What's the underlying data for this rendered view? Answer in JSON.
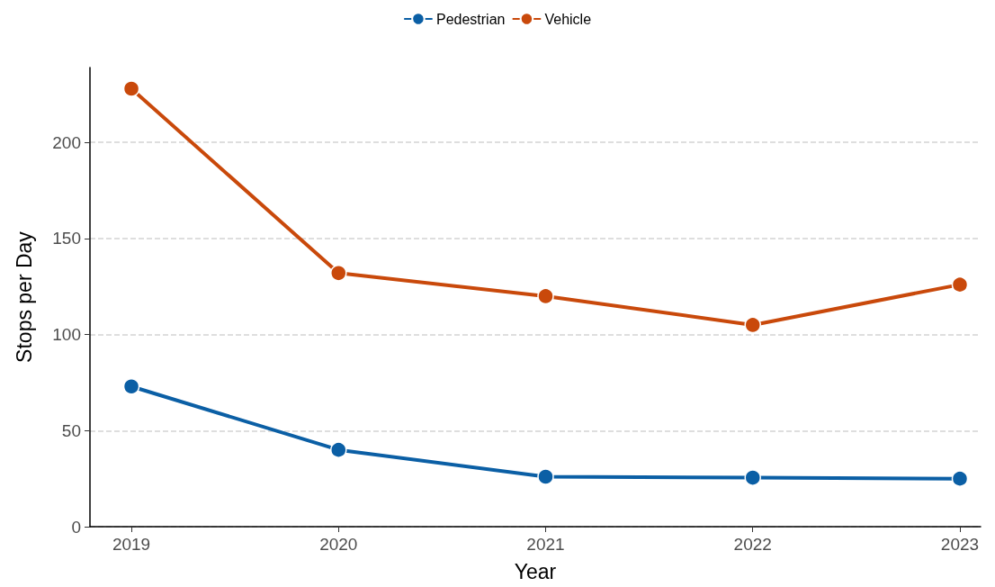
{
  "chart_data": {
    "type": "line",
    "xlabel": "Year",
    "ylabel": "Stops per Day",
    "x": [
      2019,
      2020,
      2021,
      2022,
      2023
    ],
    "series": [
      {
        "name": "Pedestrian",
        "color": "#0b5fa5",
        "values": [
          73,
          40,
          26,
          25.5,
          25
        ]
      },
      {
        "name": "Vehicle",
        "color": "#c9490b",
        "values": [
          228,
          132,
          120,
          105,
          126
        ]
      }
    ],
    "xlim": [
      2018.8,
      2023.1
    ],
    "xticks": [
      2019,
      2020,
      2021,
      2022,
      2023
    ],
    "ylim": [
      0,
      239
    ],
    "yticks": [
      0,
      50,
      100,
      150,
      200
    ],
    "grid": "y",
    "legend": "top",
    "marker": "circle",
    "line_style": "solid"
  }
}
